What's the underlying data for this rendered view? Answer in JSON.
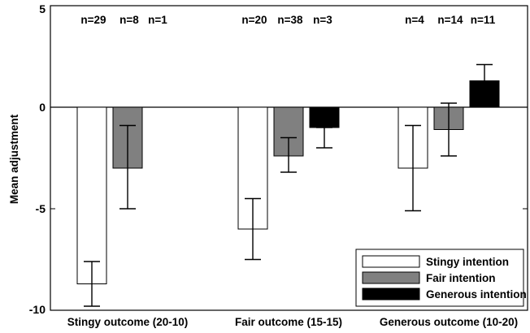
{
  "chart_data": {
    "type": "bar",
    "ylabel": "Mean adjustment",
    "xlabel": "",
    "ylim": [
      -10,
      5
    ],
    "yticks": [
      5,
      0,
      -5,
      -10
    ],
    "categories": [
      "Stingy outcome (20-10)",
      "Fair outcome (15-15)",
      "Generous outcome (10-20)"
    ],
    "series": [
      {
        "name": "Stingy intention",
        "color": "#ffffff",
        "values": [
          -8.7,
          -6.0,
          -3.0
        ],
        "error_low": [
          -9.8,
          -7.5,
          -5.1
        ],
        "error_high": [
          -7.6,
          -4.5,
          -0.9
        ],
        "n": [
          "n=29",
          "n=20",
          "n=4"
        ]
      },
      {
        "name": "Fair intention",
        "color": "#808080",
        "values": [
          -3.0,
          -2.4,
          -1.1
        ],
        "error_low": [
          -5.0,
          -3.2,
          -2.4
        ],
        "error_high": [
          -0.9,
          -1.5,
          0.2
        ],
        "n": [
          "n=8",
          "n=38",
          "n=14"
        ]
      },
      {
        "name": "Generous intention",
        "color": "#000000",
        "values": [
          null,
          -1.0,
          1.3
        ],
        "error_low": [
          null,
          -2.0,
          0.7
        ],
        "error_high": [
          null,
          -1.0,
          2.1
        ],
        "n": [
          "n=1",
          "n=3",
          "n=11"
        ]
      }
    ],
    "legend_position": "bottom-right",
    "grid": false
  }
}
